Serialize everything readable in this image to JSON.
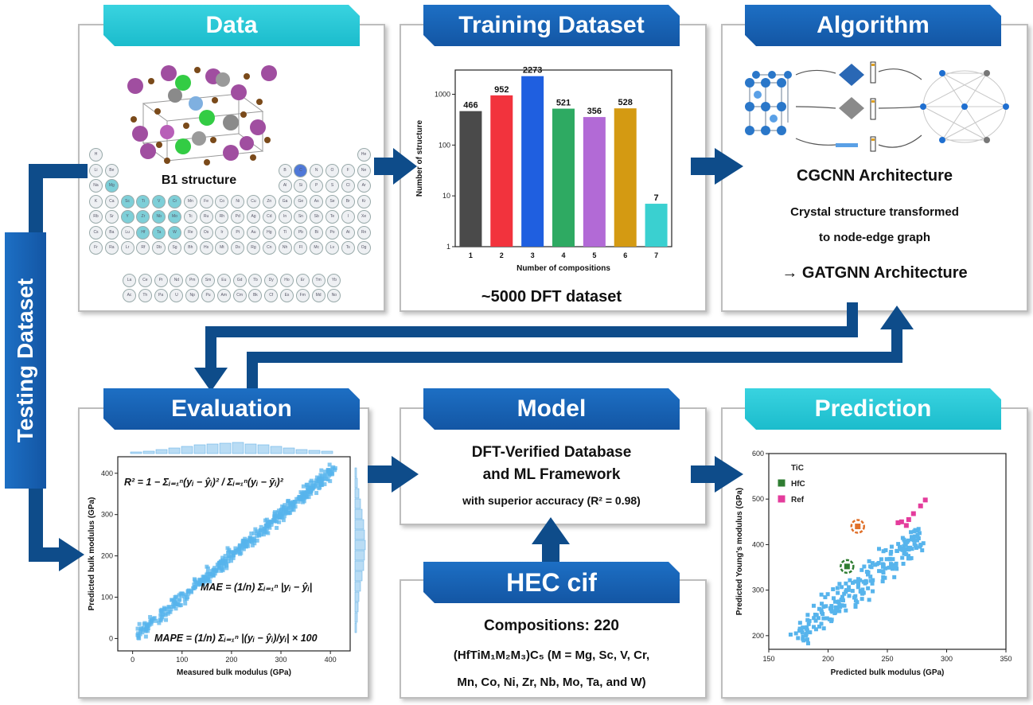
{
  "panels": {
    "data": {
      "title": "Data",
      "structure_label": "B1 structure"
    },
    "training": {
      "title": "Training Dataset",
      "caption": "~5000 DFT dataset"
    },
    "algorithm": {
      "title": "Algorithm",
      "line1": "CGCNN Architecture",
      "line2": "Crystal structure transformed",
      "line3": "to node-edge graph",
      "line4": "→ GATGNN Architecture"
    },
    "evaluation": {
      "title": "Evaluation"
    },
    "model": {
      "title": "Model",
      "line1": "DFT-Verified Database",
      "line2": "and ML Framework",
      "line3": "with superior accuracy (R² = 0.98)"
    },
    "prediction": {
      "title": "Prediction"
    },
    "hec": {
      "title": "HEC cif",
      "line1": "Compositions: 220",
      "line2": "(HfTiM₁M₂M₃)C₅ (M = Mg, Sc, V, Cr,",
      "line3": "Mn, Co, Ni, Zr, Nb, Mo, Ta, and W)"
    }
  },
  "side_label": "Testing Dataset",
  "periodic_table": {
    "main_rows": [
      [
        "H",
        "",
        "",
        "",
        "",
        "",
        "",
        "",
        "",
        "",
        "",
        "",
        "",
        "",
        "",
        "",
        "",
        "He"
      ],
      [
        "Li",
        "Be",
        "",
        "",
        "",
        "",
        "",
        "",
        "",
        "",
        "",
        "",
        "B",
        "C",
        "N",
        "O",
        "F",
        "Ne"
      ],
      [
        "Na",
        "Mg",
        "",
        "",
        "",
        "",
        "",
        "",
        "",
        "",
        "",
        "",
        "Al",
        "Si",
        "P",
        "S",
        "Cl",
        "Ar"
      ],
      [
        "K",
        "Ca",
        "Sc",
        "Ti",
        "V",
        "Cr",
        "Mn",
        "Fe",
        "Co",
        "Ni",
        "Cu",
        "Zn",
        "Ga",
        "Ge",
        "As",
        "Se",
        "Br",
        "Kr"
      ],
      [
        "Rb",
        "Sr",
        "Y",
        "Zr",
        "Nb",
        "Mo",
        "Tc",
        "Ru",
        "Rh",
        "Pd",
        "Ag",
        "Cd",
        "In",
        "Sn",
        "Sb",
        "Te",
        "I",
        "Xe"
      ],
      [
        "Cs",
        "Ba",
        "Lu",
        "Hf",
        "Ta",
        "W",
        "Re",
        "Os",
        "Ir",
        "Pt",
        "Au",
        "Hg",
        "Tl",
        "Pb",
        "Bi",
        "Po",
        "At",
        "Rn"
      ],
      [
        "Fr",
        "Ra",
        "Lr",
        "Rf",
        "Db",
        "Sg",
        "Bh",
        "Hs",
        "Mt",
        "Ds",
        "Rg",
        "Cn",
        "Nh",
        "Fl",
        "Mc",
        "Lv",
        "Ts",
        "Og"
      ]
    ],
    "f_rows": [
      [
        "La",
        "Ce",
        "Pr",
        "Nd",
        "Pm",
        "Sm",
        "Eu",
        "Gd",
        "Tb",
        "Dy",
        "Ho",
        "Er",
        "Tm",
        "Yb"
      ],
      [
        "Ac",
        "Th",
        "Pa",
        "U",
        "Np",
        "Pu",
        "Am",
        "Cm",
        "Bk",
        "Cf",
        "Es",
        "Fm",
        "Md",
        "No"
      ]
    ],
    "highlighted": [
      "Sc",
      "Ti",
      "V",
      "Cr",
      "Y",
      "Zr",
      "Nb",
      "Mo",
      "Hf",
      "Ta",
      "W",
      "Mg",
      "C"
    ]
  },
  "chart_data": [
    {
      "type": "bar",
      "xlabel": "Number of compositions",
      "ylabel": "Number of structure",
      "categories": [
        "1",
        "2",
        "3",
        "4",
        "5",
        "6",
        "7"
      ],
      "values": [
        466,
        952,
        2273,
        521,
        356,
        528,
        7
      ],
      "y_scale": "log",
      "ylim": [
        1,
        3000
      ],
      "y_ticks": [
        "1",
        "10",
        "100",
        "1000"
      ],
      "colors": [
        "#4a4a4a",
        "#f2333d",
        "#1f5fe0",
        "#2eaa62",
        "#b26ad6",
        "#d49a12",
        "#3ad0d0"
      ]
    },
    {
      "type": "scatter",
      "xlabel": "Measured bulk modulus (GPa)",
      "ylabel": "Predicted bulk modulus (GPa)",
      "x_ticks": [
        "0",
        "100",
        "200",
        "300",
        "400"
      ],
      "y_ticks": [
        "0",
        "100",
        "200",
        "300",
        "400"
      ],
      "xlim": [
        -30,
        440
      ],
      "ylim": [
        -30,
        440
      ],
      "trend": {
        "x_range": [
          10,
          410
        ],
        "spread": 20
      },
      "color": "#57b4ec",
      "formulas": {
        "r2": "R² = 1 − Σᵢ₌₁ⁿ(yᵢ − ŷᵢ)² / Σᵢ₌₁ⁿ(yᵢ − ȳᵢ)²",
        "mae": "MAE = (1/n) Σᵢ₌₁ⁿ |yᵢ − ŷᵢ|",
        "mape": "MAPE = (1/n) Σᵢ₌₁ⁿ |(yᵢ − ŷᵢ)/yᵢ| × 100"
      }
    },
    {
      "type": "scatter",
      "xlabel": "Predicted bulk modulus (GPa)",
      "ylabel": "Predicted Young's modulus (GPa)",
      "x_ticks": [
        "150",
        "200",
        "250",
        "300",
        "350"
      ],
      "y_ticks": [
        "200",
        "300",
        "400",
        "500",
        "600"
      ],
      "xlim": [
        150,
        350
      ],
      "ylim": [
        170,
        600
      ],
      "color": "#57b4ec",
      "legend": [
        {
          "name": "TiC",
          "color": "#ffffff"
        },
        {
          "name": "HfC",
          "color": "#2f7d32"
        },
        {
          "name": "Ref",
          "color": "#e43c9c"
        }
      ],
      "highlights": [
        {
          "name": "TiC",
          "x": 225,
          "y": 440,
          "color": "#e0702a"
        },
        {
          "name": "HfC",
          "x": 216,
          "y": 352,
          "color": "#2f7d32"
        }
      ],
      "ref_points": [
        [
          262,
          450
        ],
        [
          268,
          455
        ],
        [
          272,
          468
        ],
        [
          266,
          442
        ],
        [
          278,
          485
        ],
        [
          282,
          498
        ],
        [
          259,
          448
        ]
      ]
    }
  ]
}
